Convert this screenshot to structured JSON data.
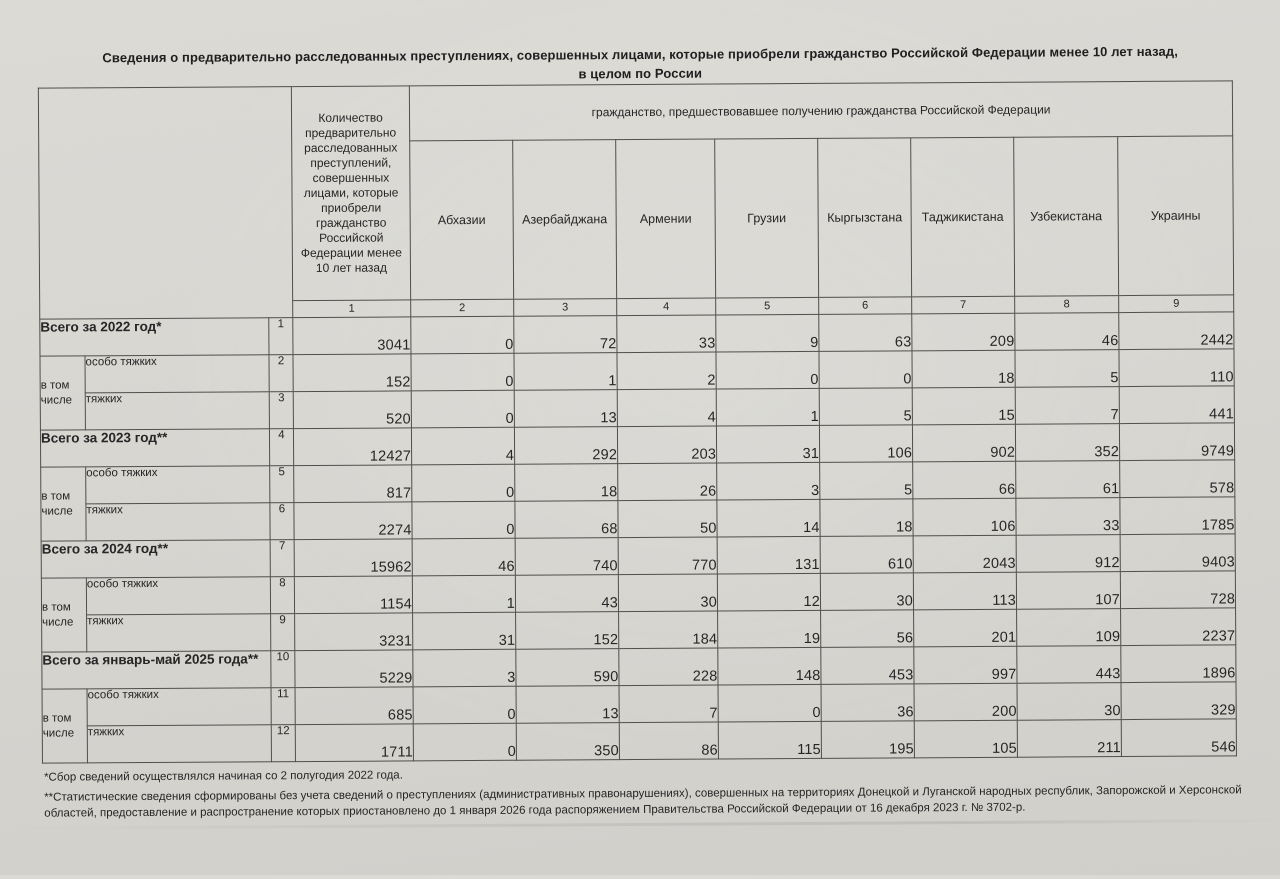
{
  "page": {
    "title_line1": "Сведения о предварительно расследованных преступлениях, совершенных лицами, которые приобрели гражданство Российской Федерации менее 10 лет назад,",
    "title_line2": "в целом по России"
  },
  "table": {
    "quantity_header": "Количество предварительно расследованных преступлений, совершенных лицами, которые приобрели гражданство Российской Федерации менее 10 лет назад",
    "citizenship_header": "гражданство, предшествовавшее получению гражданства Российской Федерации",
    "countries": [
      "Абхазии",
      "Азербайджана",
      "Армении",
      "Грузии",
      "Кыргызстана",
      "Таджикистана",
      "Узбекистана",
      "Украины"
    ],
    "col_numbers": [
      "1",
      "2",
      "3",
      "4",
      "5",
      "6",
      "7",
      "8",
      "9"
    ],
    "group_label": "в том числе",
    "rows": [
      {
        "kind": "total",
        "label": "Всего за 2022 год*",
        "num": "1",
        "values": [
          3041,
          0,
          72,
          33,
          9,
          63,
          209,
          46,
          2442
        ]
      },
      {
        "kind": "sub-first",
        "group_label": "в том числе",
        "label": "особо тяжких",
        "num": "2",
        "values": [
          152,
          0,
          1,
          2,
          0,
          0,
          18,
          5,
          110
        ]
      },
      {
        "kind": "sub",
        "label": "тяжких",
        "num": "3",
        "values": [
          520,
          0,
          13,
          4,
          1,
          5,
          15,
          7,
          441
        ]
      },
      {
        "kind": "total",
        "label": "Всего за 2023 год**",
        "num": "4",
        "values": [
          12427,
          4,
          292,
          203,
          31,
          106,
          902,
          352,
          9749
        ]
      },
      {
        "kind": "sub-first",
        "group_label": "в том числе",
        "label": "особо тяжких",
        "num": "5",
        "values": [
          817,
          0,
          18,
          26,
          3,
          5,
          66,
          61,
          578
        ]
      },
      {
        "kind": "sub",
        "label": "тяжких",
        "num": "6",
        "values": [
          2274,
          0,
          68,
          50,
          14,
          18,
          106,
          33,
          1785
        ]
      },
      {
        "kind": "total",
        "label": "Всего за 2024 год**",
        "num": "7",
        "values": [
          15962,
          46,
          740,
          770,
          131,
          610,
          2043,
          912,
          9403
        ]
      },
      {
        "kind": "sub-first",
        "group_label": "в том числе",
        "label": "особо тяжких",
        "num": "8",
        "values": [
          1154,
          1,
          43,
          30,
          12,
          30,
          113,
          107,
          728
        ]
      },
      {
        "kind": "sub",
        "label": "тяжких",
        "num": "9",
        "values": [
          3231,
          31,
          152,
          184,
          19,
          56,
          201,
          109,
          2237
        ]
      },
      {
        "kind": "total",
        "label": "Всего за январь-май 2025 года**",
        "num": "10",
        "values": [
          5229,
          3,
          590,
          228,
          148,
          453,
          997,
          443,
          1896
        ]
      },
      {
        "kind": "sub-first",
        "group_label": "в том числе",
        "label": "особо тяжких",
        "num": "11",
        "values": [
          685,
          0,
          13,
          7,
          0,
          36,
          200,
          30,
          329
        ]
      },
      {
        "kind": "sub",
        "label": "тяжких",
        "num": "12",
        "values": [
          1711,
          0,
          350,
          86,
          115,
          195,
          105,
          211,
          546
        ]
      }
    ]
  },
  "footnotes": {
    "note1": "*Сбор сведений осуществлялся начиная со 2 полугодия 2022 года.",
    "note2": "**Статистические сведения сформированы без учета сведений о преступлениях (административных правонарушениях), совершенных на территориях Донецкой и Луганской народных республик, Запорожской и Херсонской областей, предоставление и распространение которых приостановлено до 1 января 2026 года распоряжением Правительства Российской Федерации от 16 декабря 2023 г. № 3702-р."
  },
  "colors": {
    "paper": "#d8d6d1",
    "border": "#504f4c",
    "text": "#262626"
  }
}
